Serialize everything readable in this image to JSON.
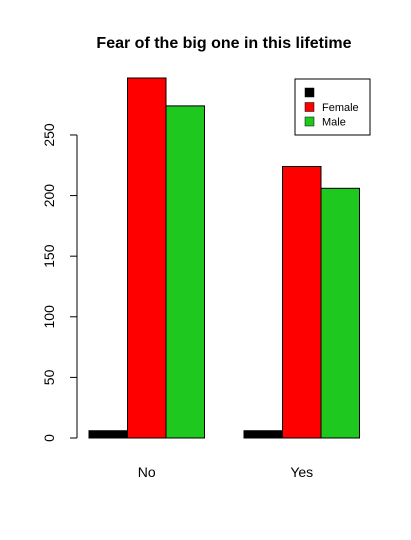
{
  "chart_data": {
    "type": "bar",
    "title": "Fear of the big one in this lifetime",
    "xlabel": "",
    "ylabel": "",
    "categories": [
      "No",
      "Yes"
    ],
    "series": [
      {
        "name": "",
        "color": "#000000",
        "values": [
          6,
          6
        ]
      },
      {
        "name": "Female",
        "color": "#ff0000",
        "values": [
          297,
          224
        ]
      },
      {
        "name": "Male",
        "color": "#1ec81e",
        "values": [
          274,
          206
        ]
      }
    ],
    "yticks": [
      0,
      50,
      100,
      150,
      200,
      250
    ],
    "ylim": [
      0,
      297
    ],
    "legend_position": "top-right",
    "grid": false
  }
}
